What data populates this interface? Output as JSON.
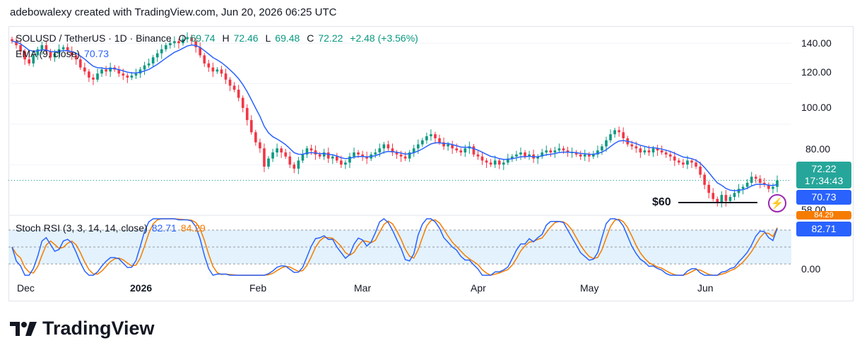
{
  "header": {
    "text": "adebowalexy created with TradingView.com, Jun 20, 2026 06:25 UTC"
  },
  "legend": {
    "symbol": "SOLUSD / TetherUS · 1D · Binance",
    "o_label": "O",
    "o_value": "69.74",
    "h_label": "H",
    "h_value": "72.46",
    "l_label": "L",
    "l_value": "69.48",
    "c_label": "C",
    "c_value": "72.22",
    "change": "+2.48 (+3.56%)",
    "ema_label": "EMA (9, close)",
    "ema_value": "70.73",
    "stoch_label": "Stoch RSI (3, 3, 14, 14, close)",
    "stoch_k": "82.71",
    "stoch_d": "84.29"
  },
  "price_scale": {
    "ticks": [
      "140.00",
      "120.00",
      "100.00",
      "80.00",
      "58.00"
    ],
    "last_price": "72.22",
    "countdown": "17:34:43",
    "ema_tag": "70.73"
  },
  "stoch_scale": {
    "ticks": [
      "0.00"
    ],
    "d_tag": "84.29",
    "k_tag": "82.71"
  },
  "time_axis": [
    "Dec",
    "2026",
    "Feb",
    "Mar",
    "Apr",
    "May",
    "Jun"
  ],
  "annotation": {
    "text": "$60"
  },
  "brand": {
    "name": "TradingView"
  },
  "colors": {
    "up": "#089981",
    "down": "#f23645",
    "ema": "#2962ff",
    "stoch_k": "#2962ff",
    "stoch_d": "#f57c00",
    "band": "#e3f2fd"
  },
  "chart_data": [
    {
      "type": "candlestick",
      "title": "SOLUSD / TetherUS · 1D · Binance",
      "ylim": [
        56,
        146
      ],
      "x_start": "2025-11-22",
      "close": [
        141,
        139,
        136,
        132,
        130,
        134,
        137,
        139,
        136,
        133,
        135,
        137,
        138,
        136,
        134,
        132,
        128,
        126,
        123,
        122,
        125,
        127,
        126,
        128,
        127,
        125,
        124,
        123,
        124,
        125,
        127,
        129,
        130,
        133,
        135,
        137,
        139,
        140,
        141,
        140,
        142,
        143,
        141,
        138,
        134,
        130,
        128,
        126,
        127,
        125,
        122,
        119,
        117,
        113,
        108,
        102,
        96,
        91,
        88,
        79,
        83,
        86,
        88,
        86,
        84,
        80,
        78,
        82,
        85,
        88,
        87,
        85,
        84,
        86,
        83,
        84,
        82,
        80,
        81,
        84,
        86,
        85,
        84,
        83,
        85,
        86,
        88,
        90,
        88,
        86,
        85,
        84,
        83,
        86,
        88,
        90,
        92,
        94,
        95,
        93,
        91,
        89,
        90,
        88,
        87,
        86,
        88,
        89,
        85,
        84,
        82,
        81,
        80,
        82,
        80,
        81,
        83,
        84,
        85,
        86,
        84,
        85,
        83,
        84,
        86,
        87,
        86,
        87,
        88,
        87,
        86,
        86,
        85,
        84,
        85,
        84,
        85,
        87,
        89,
        92,
        95,
        97,
        96,
        93,
        90,
        89,
        88,
        86,
        87,
        86,
        88,
        87,
        86,
        85,
        84,
        82,
        81,
        80,
        82,
        81,
        79,
        75,
        70,
        66,
        63,
        61,
        65,
        62,
        64,
        66,
        68,
        69,
        71,
        74,
        73,
        71,
        70,
        68,
        69,
        72.22
      ]
    },
    {
      "type": "line",
      "title": "EMA (9, close)",
      "last": 70.73
    },
    {
      "type": "line",
      "title": "Stoch RSI (3, 3, 14, 14, close)",
      "ylim": [
        0,
        100
      ],
      "bands": [
        20,
        80
      ],
      "k_last": 82.71,
      "d_last": 84.29
    }
  ]
}
